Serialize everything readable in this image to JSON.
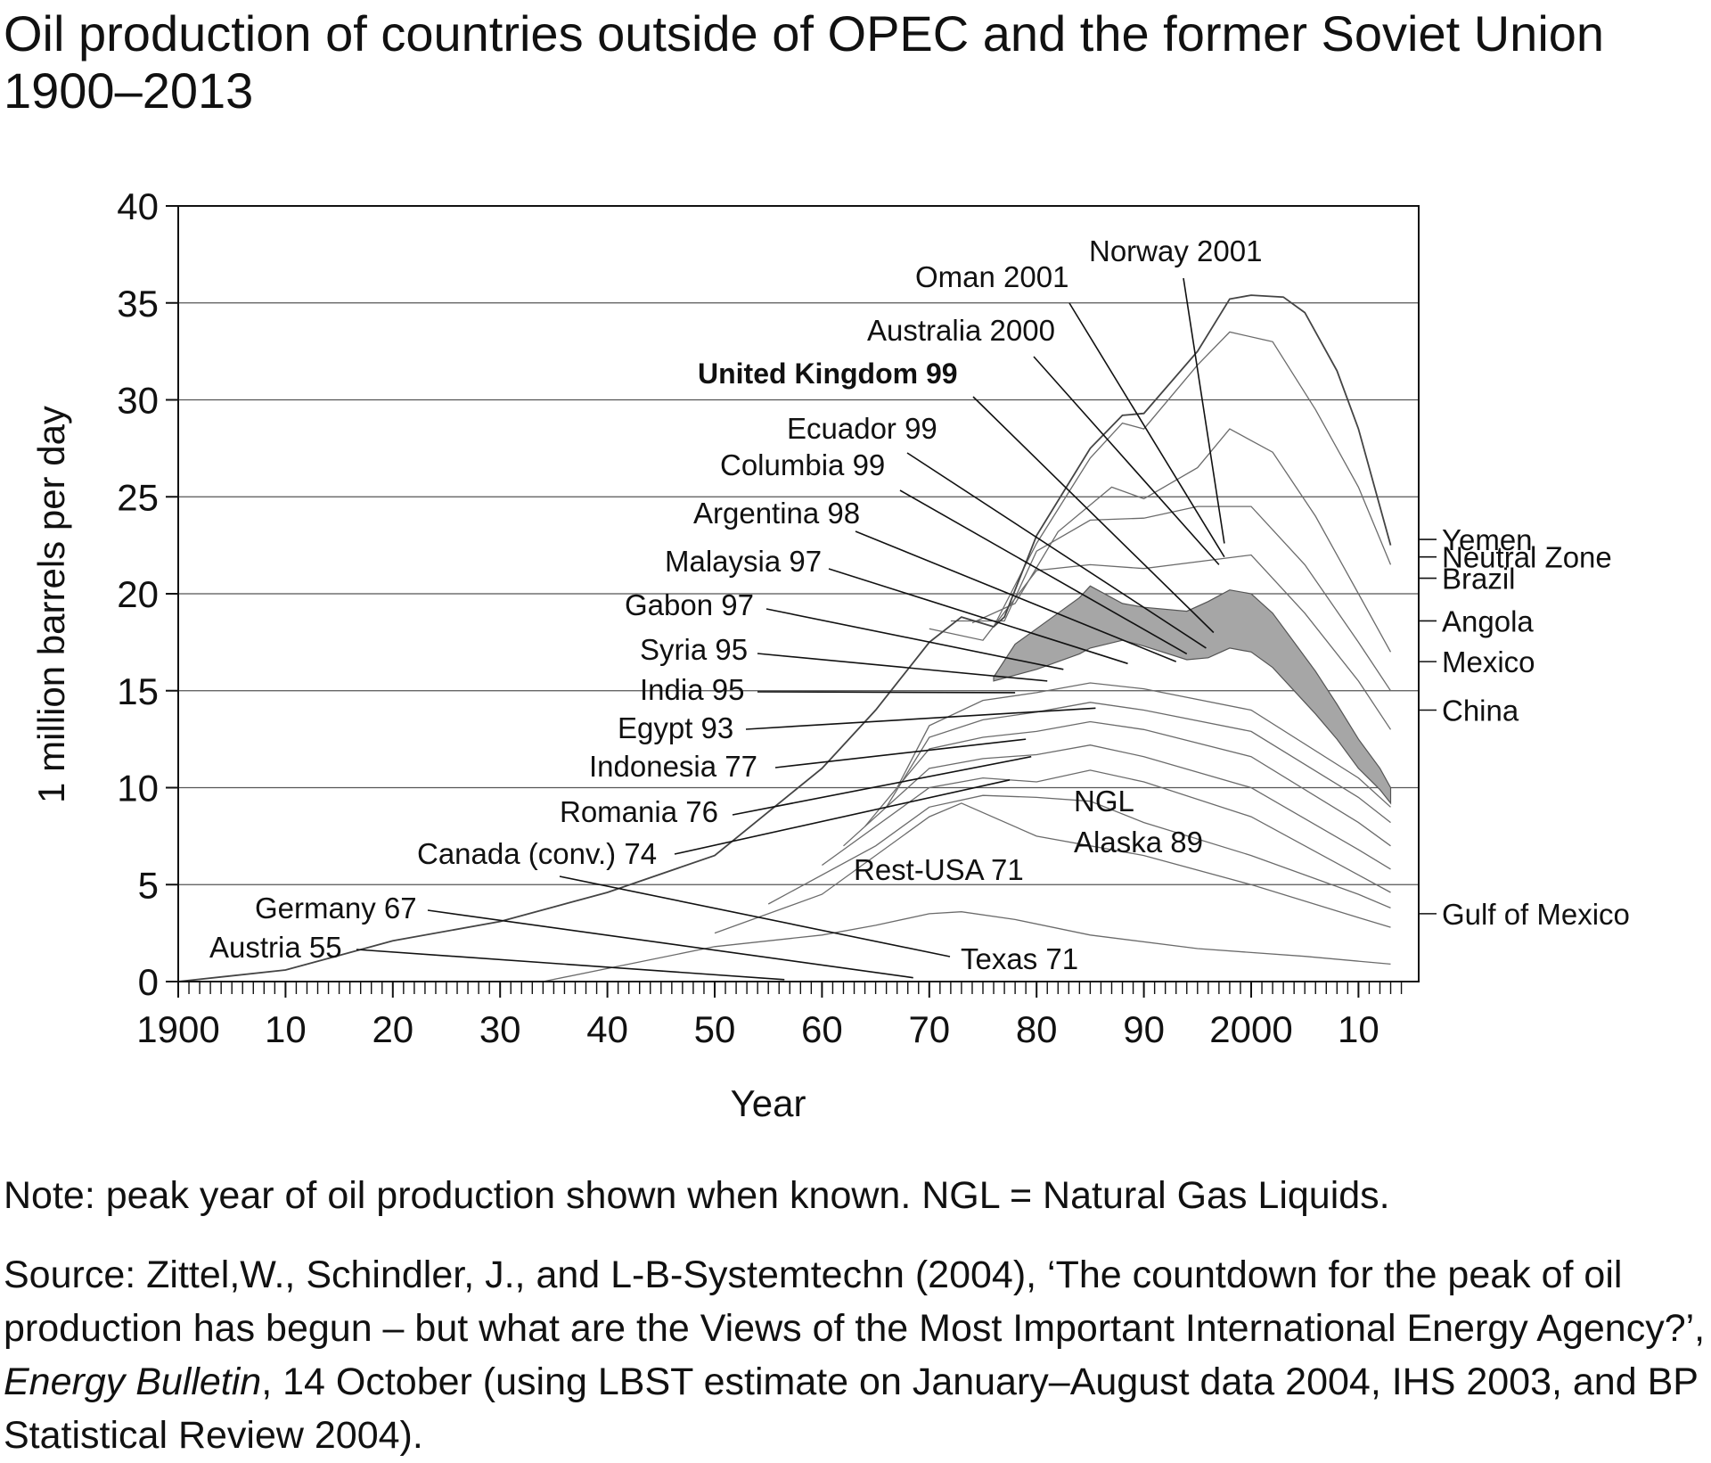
{
  "chart_data": {
    "type": "area",
    "title": "Oil production of countries outside of OPEC and the former Soviet Union 1900–2013",
    "xlabel": "Year",
    "ylabel": "1 million barrels per day",
    "xlim": [
      1900,
      2014
    ],
    "ylim": [
      0,
      40
    ],
    "x_ticks": [
      1900,
      1910,
      1920,
      1930,
      1940,
      1950,
      1960,
      1970,
      1980,
      1990,
      2000,
      2010
    ],
    "x_tick_labels": [
      "1900",
      "10",
      "20",
      "30",
      "40",
      "50",
      "60",
      "70",
      "80",
      "90",
      "2000",
      "10"
    ],
    "y_ticks": [
      0,
      5,
      10,
      15,
      20,
      25,
      30,
      35,
      40
    ],
    "y_tick_labels": [
      "0",
      "5",
      "10",
      "15",
      "20",
      "25",
      "30",
      "35",
      "40"
    ],
    "grid": "horizontal",
    "highlighted_series": "United Kingdom 99",
    "highlight_color": "#a6a6a6",
    "line_color": "#6b6b6b",
    "total_curve": {
      "x": [
        1900,
        1910,
        1920,
        1930,
        1940,
        1950,
        1960,
        1965,
        1970,
        1973,
        1976,
        1977,
        1980,
        1985,
        1988,
        1990,
        1995,
        1998,
        2000,
        2003,
        2005,
        2008,
        2010,
        2013
      ],
      "y": [
        0,
        0.6,
        2.1,
        3.1,
        4.6,
        6.5,
        11,
        14,
        17.5,
        18.8,
        18.3,
        18.8,
        23,
        27.5,
        29.2,
        29.3,
        32.5,
        35.2,
        35.4,
        35.3,
        34.5,
        31.5,
        28.5,
        22.5
      ]
    },
    "uk_band": {
      "x": [
        1976,
        1978,
        1980,
        1984,
        1985,
        1988,
        1990,
        1994,
        1996,
        1998,
        2000,
        2002,
        2004,
        2006,
        2008,
        2010,
        2012,
        2013
      ],
      "lower": [
        15.5,
        15.8,
        16.1,
        16.9,
        17.2,
        17.6,
        17.3,
        16.6,
        16.7,
        17.2,
        17.0,
        16.2,
        15.0,
        13.8,
        12.5,
        11.0,
        9.9,
        9.2
      ],
      "upper": [
        15.7,
        17.4,
        18.2,
        19.8,
        20.4,
        19.5,
        19.3,
        19.1,
        19.6,
        20.2,
        20.0,
        19.0,
        17.5,
        16.0,
        14.3,
        12.5,
        11.0,
        10.0
      ]
    },
    "inner_boundaries": [
      {
        "x": [
          1934,
          1950,
          1960,
          1965,
          1970,
          1973,
          1978,
          1985,
          1995,
          2005,
          2013
        ],
        "y": [
          0,
          1.8,
          2.4,
          2.9,
          3.5,
          3.6,
          3.2,
          2.4,
          1.7,
          1.3,
          0.9
        ]
      },
      {
        "x": [
          1950,
          1960,
          1970,
          1973,
          1980,
          1990,
          2000,
          2010,
          2013
        ],
        "y": [
          2.5,
          4.5,
          8.5,
          9.2,
          7.5,
          6.5,
          5.0,
          3.3,
          2.8
        ]
      },
      {
        "x": [
          1955,
          1965,
          1970,
          1975,
          1980,
          1985,
          1990,
          2000,
          2010,
          2013
        ],
        "y": [
          4,
          7,
          9,
          9.6,
          9.5,
          9.3,
          8.2,
          6.5,
          4.5,
          3.8
        ]
      },
      {
        "x": [
          1960,
          1970,
          1975,
          1980,
          1985,
          1990,
          2000,
          2010,
          2013
        ],
        "y": [
          6,
          10,
          10.5,
          10.3,
          10.9,
          10.3,
          8.5,
          5.5,
          4.6
        ]
      },
      {
        "x": [
          1962,
          1970,
          1975,
          1980,
          1985,
          1990,
          2000,
          2010,
          2013
        ],
        "y": [
          7,
          11,
          11.5,
          11.7,
          12.2,
          11.6,
          10,
          6.8,
          5.8
        ]
      },
      {
        "x": [
          1964,
          1970,
          1975,
          1980,
          1985,
          1990,
          2000,
          2010,
          2013
        ],
        "y": [
          8,
          12,
          12.6,
          12.9,
          13.4,
          13.0,
          11.6,
          8.2,
          7.0
        ]
      },
      {
        "x": [
          1966,
          1970,
          1975,
          1980,
          1985,
          1990,
          2000,
          2010,
          2013
        ],
        "y": [
          9,
          12.6,
          13.5,
          13.9,
          14.4,
          14.0,
          12.9,
          9.5,
          8.2
        ]
      },
      {
        "x": [
          1967,
          1970,
          1975,
          1980,
          1985,
          1990,
          2000,
          2010,
          2013
        ],
        "y": [
          10,
          13.2,
          14.5,
          14.9,
          15.4,
          15.1,
          14.0,
          10.5,
          9.0
        ]
      },
      {
        "x": [
          1970,
          1975,
          1980,
          1985,
          1990,
          2000,
          2005,
          2010,
          2013
        ],
        "y": [
          18.2,
          17.6,
          21.2,
          21.5,
          21.3,
          22.0,
          19.0,
          15.5,
          13.0
        ]
      },
      {
        "x": [
          1972,
          1977,
          1980,
          1985,
          1990,
          1995,
          2000,
          2005,
          2010,
          2013
        ],
        "y": [
          18.6,
          18.6,
          22.2,
          23.8,
          23.9,
          24.5,
          24.5,
          21.5,
          17.5,
          15.0
        ]
      },
      {
        "x": [
          1974,
          1978,
          1982,
          1987,
          1990,
          1995,
          1998,
          2002,
          2006,
          2010,
          2013
        ],
        "y": [
          18.5,
          19.5,
          23.2,
          25.5,
          24.9,
          26.5,
          28.5,
          27.3,
          24.0,
          20.0,
          17.0
        ]
      },
      {
        "x": [
          1976,
          1980,
          1985,
          1988,
          1990,
          1995,
          1998,
          2002,
          2006,
          2010,
          2013
        ],
        "y": [
          18.3,
          22.6,
          27.0,
          28.8,
          28.5,
          31.8,
          33.5,
          33.0,
          29.5,
          25.5,
          21.5
        ]
      }
    ],
    "annotations": [
      {
        "label": "Norway 2001",
        "bold": false,
        "x": 1997.5,
        "y": 22.6
      },
      {
        "label": "Oman 2001",
        "bold": false,
        "x": 1997.5,
        "y": 21.9
      },
      {
        "label": "Australia 2000",
        "bold": false,
        "x": 1997,
        "y": 21.5
      },
      {
        "label": "United Kingdom 99",
        "bold": true,
        "x": 1996.5,
        "y": 18.0
      },
      {
        "label": "Ecuador 99",
        "bold": false,
        "x": 1995.8,
        "y": 17.2
      },
      {
        "label": "Columbia 99",
        "bold": false,
        "x": 1994,
        "y": 16.9
      },
      {
        "label": "Argentina 98",
        "bold": false,
        "x": 1993,
        "y": 16.5
      },
      {
        "label": "Malaysia 97",
        "bold": false,
        "x": 1988.5,
        "y": 16.4
      },
      {
        "label": "Gabon 97",
        "bold": false,
        "x": 1982.5,
        "y": 16.1
      },
      {
        "label": "Syria 95",
        "bold": false,
        "x": 1981,
        "y": 15.5
      },
      {
        "label": "India 95",
        "bold": false,
        "x": 1978,
        "y": 14.9
      },
      {
        "label": "Egypt 93",
        "bold": false,
        "x": 1985.5,
        "y": 14.1
      },
      {
        "label": "Indonesia 77",
        "bold": false,
        "x": 1979,
        "y": 12.5
      },
      {
        "label": "Romania 76",
        "bold": false,
        "x": 1979.5,
        "y": 11.6
      },
      {
        "label": "Canada (conv.) 74",
        "bold": false,
        "x": 1977.5,
        "y": 10.4
      },
      {
        "label": "Germany 67",
        "bold": false,
        "x": 1968.5,
        "y": 0.2
      },
      {
        "label": "Austria 55",
        "bold": false,
        "x": 1956.5,
        "y": 0.1
      },
      {
        "label": "Texas 71",
        "bold": false,
        "x": 1940,
        "y": 5.1
      },
      {
        "label": "NGL",
        "bold": false
      },
      {
        "label": "Alaska 89",
        "bold": false
      },
      {
        "label": "Rest-USA 71",
        "bold": false
      }
    ],
    "right_labels": [
      {
        "label": "Yemen",
        "y": 22.8
      },
      {
        "label": "Neutral Zone",
        "y": 21.9
      },
      {
        "label": "Brazil",
        "y": 20.8
      },
      {
        "label": "Angola",
        "y": 18.6
      },
      {
        "label": "Mexico",
        "y": 16.5
      },
      {
        "label": "China",
        "y": 14.0
      },
      {
        "label": "Gulf of Mexico",
        "y": 3.5
      }
    ]
  },
  "note": "Note: peak year of oil production shown when known. NGL = Natural Gas Liquids.",
  "source": {
    "prefix": "Source:  Zittel,W., Schindler, J., and L-B-Systemtechn (2004), ‘The countdown for the peak of oil production has begun – but what are the Views of the Most Important International Energy Agency?’, ",
    "journal": "Energy Bulletin",
    "suffix": ", 14 October (using LBST estimate on January–August data 2004, IHS 2003, and BP Statistical Review 2004)."
  }
}
